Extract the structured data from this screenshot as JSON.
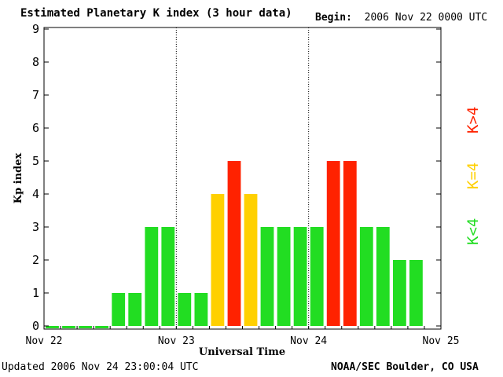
{
  "header": {
    "title": "Estimated Planetary K index (3 hour data)",
    "begin_label": "Begin:",
    "begin_value": "2006 Nov 22 0000 UTC"
  },
  "footer": {
    "updated_label": "Updated",
    "updated_value": "2006 Nov 24 23:00:04 UTC",
    "credit": "NOAA/SEC Boulder, CO USA"
  },
  "legend": [
    {
      "label": "K<4",
      "color": "#22dd22"
    },
    {
      "label": "K=4",
      "color": "#ffd000"
    },
    {
      "label": "K>4",
      "color": "#ff2200"
    }
  ],
  "chart_data": {
    "type": "bar",
    "title": "Estimated Planetary K index (3 hour data)",
    "xlabel": "Universal Time",
    "ylabel": "Kp index",
    "ylim": [
      0,
      9
    ],
    "yticks": [
      0,
      1,
      2,
      3,
      4,
      5,
      6,
      7,
      8,
      9
    ],
    "xtick_labels": [
      "Nov 22",
      "Nov 23",
      "Nov 24",
      "Nov 25"
    ],
    "day_dividers": [
      "Nov 23",
      "Nov 24"
    ],
    "bars_per_day": 8,
    "values": [
      0,
      0,
      0,
      0,
      1,
      1,
      3,
      3,
      1,
      1,
      4,
      5,
      4,
      3,
      3,
      3,
      3,
      5,
      5,
      3,
      3,
      2,
      2
    ],
    "colors": {
      "low": "#22dd22",
      "equal": "#ffd000",
      "high": "#ff2200"
    }
  }
}
